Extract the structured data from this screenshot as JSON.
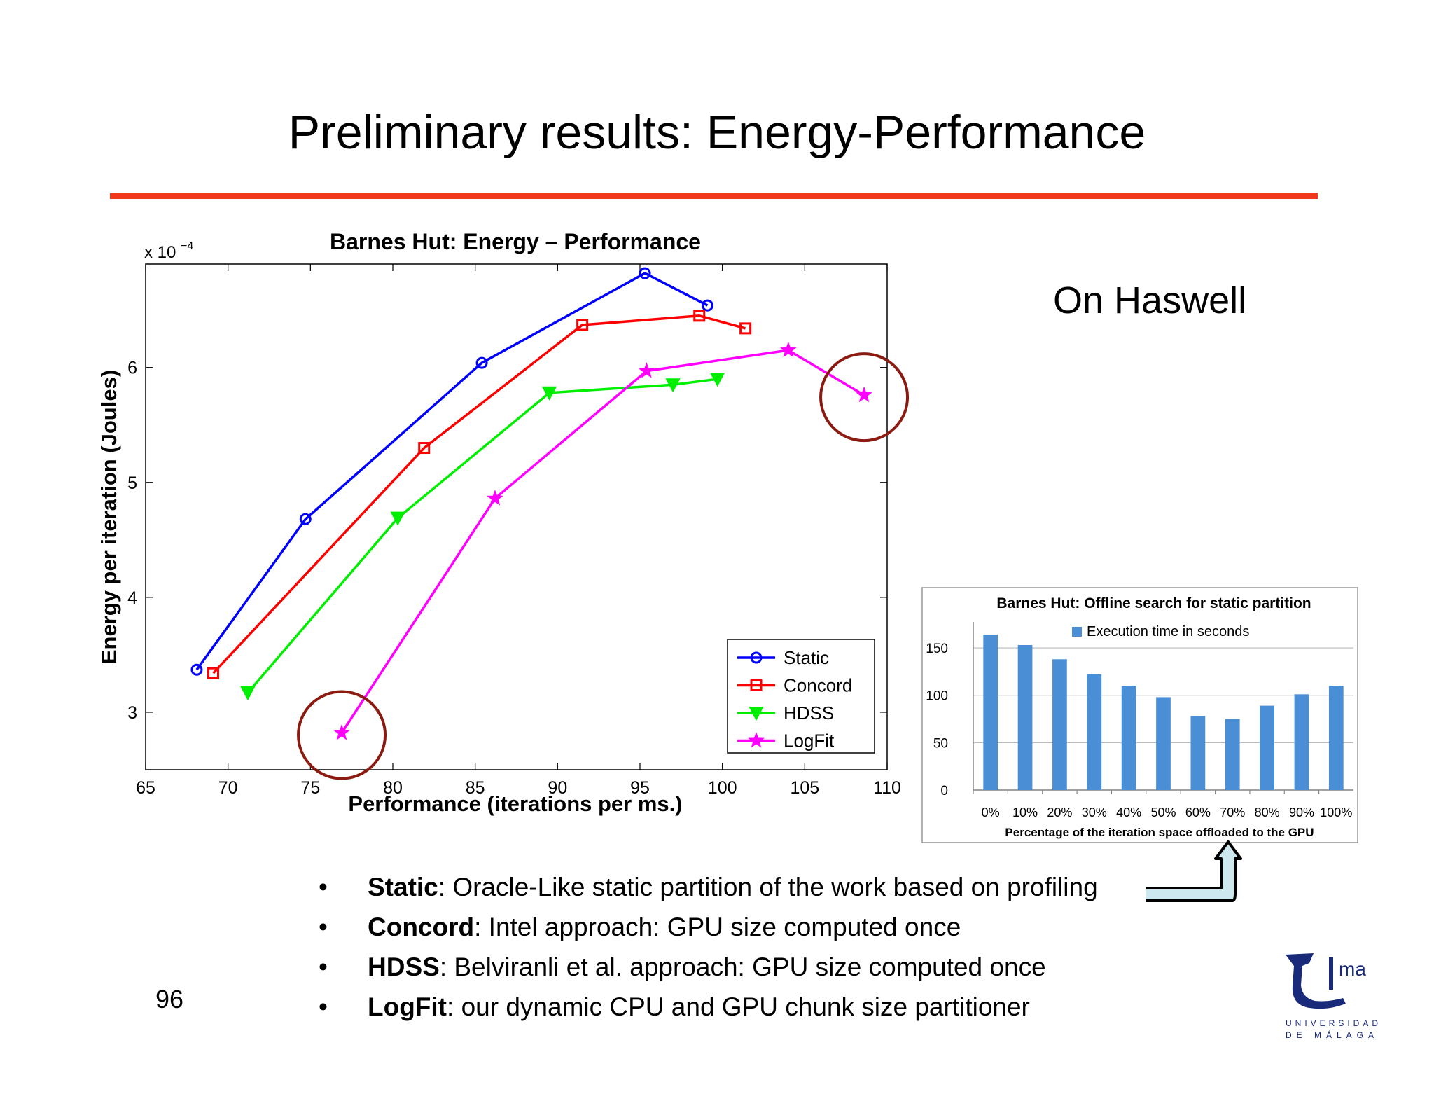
{
  "slide": {
    "title": "Preliminary results: Energy-Performance",
    "subtitle": "On Haswell",
    "page_number": "96",
    "accent_color": "#f0391c"
  },
  "bullets": [
    {
      "term": "Static",
      "text": ": Oracle-Like static partition of the work based on profiling"
    },
    {
      "term": "Concord",
      "text": ": Intel approach: GPU size computed once"
    },
    {
      "term": "HDSS",
      "text": ": Belviranli et al. approach: GPU size computed once"
    },
    {
      "term": "LogFit",
      "text": ": our dynamic CPU and GPU chunk size partitioner"
    }
  ],
  "logo": {
    "mark": "ma",
    "line1": "UNIVERSIDAD",
    "line2": "DE MÁLAGA",
    "color": "#1a2a7a"
  },
  "chart_data": [
    {
      "type": "line",
      "title": "Barnes Hut: Energy – Performance",
      "xlabel": "Performance (iterations per ms.)",
      "ylabel": "Energy per iteration (Joules)",
      "y_multiplier": "x 10",
      "y_exponent": "−4",
      "xlim": [
        65,
        110
      ],
      "ylim": [
        2.5,
        6.9
      ],
      "xticks": [
        65,
        70,
        75,
        80,
        85,
        90,
        95,
        100,
        105,
        110
      ],
      "yticks": [
        3,
        4,
        5,
        6
      ],
      "grid": false,
      "legend": "bottom-right",
      "series": [
        {
          "name": "Static",
          "color": "#0000ff",
          "marker": "circle",
          "x": [
            68.1,
            74.7,
            85.4,
            95.3,
            99.1
          ],
          "y": [
            3.37,
            4.68,
            6.04,
            6.82,
            6.54
          ]
        },
        {
          "name": "Concord",
          "color": "#ff0000",
          "marker": "square",
          "x": [
            69.1,
            81.9,
            91.5,
            98.6,
            101.4
          ],
          "y": [
            3.34,
            5.3,
            6.37,
            6.45,
            6.34
          ]
        },
        {
          "name": "HDSS",
          "color": "#00ee00",
          "marker": "triangle-down",
          "x": [
            71.2,
            80.3,
            89.5,
            97.0,
            99.7
          ],
          "y": [
            3.17,
            4.69,
            5.78,
            5.85,
            5.9
          ]
        },
        {
          "name": "LogFit",
          "color": "#ff00ff",
          "marker": "star",
          "x": [
            76.9,
            86.2,
            95.4,
            104.0,
            108.6
          ],
          "y": [
            2.82,
            4.86,
            5.97,
            6.15,
            5.76
          ]
        }
      ],
      "annotations": [
        {
          "label": "highlighted point",
          "x": 76.9,
          "y": 2.82,
          "color": "#8b1a10"
        },
        {
          "label": "highlighted point",
          "x": 108.6,
          "y": 5.76,
          "color": "#8b1a10"
        }
      ]
    },
    {
      "type": "bar",
      "title": "Barnes Hut: Offline search for static partition",
      "xlabel": "Percentage of the iteration space offloaded to the GPU",
      "ylabel": "",
      "ylim": [
        0,
        170
      ],
      "yticks": [
        0,
        50,
        100,
        150
      ],
      "grid": true,
      "legend": "top-center",
      "categories": [
        "0%",
        "10%",
        "20%",
        "30%",
        "40%",
        "50%",
        "60%",
        "70%",
        "80%",
        "90%",
        "100%"
      ],
      "series": [
        {
          "name": "Execution time in seconds",
          "color": "#4a8fd6",
          "values": [
            164,
            153,
            138,
            122,
            110,
            98,
            78,
            75,
            89,
            101,
            110
          ]
        }
      ]
    }
  ]
}
